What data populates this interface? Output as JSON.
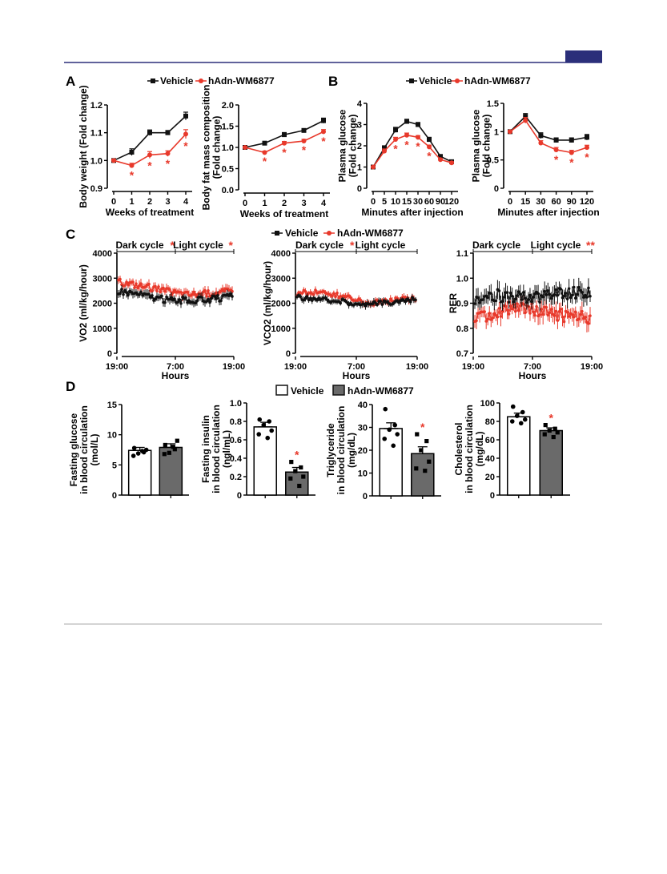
{
  "colors": {
    "vehicle": "#111111",
    "treated": "#e8392b",
    "bar_vehicle": "#ffffff",
    "bar_treated": "#6a6a6a",
    "header_rule": "#2b2f7a",
    "header_box": "#2b2f7a",
    "footer_rule": "#aaaaaa"
  },
  "panels": {
    "A": "A",
    "B": "B",
    "C": "C",
    "D": "D"
  },
  "legend": {
    "vehicle": "Vehicle",
    "treated": "hAdn-WM6877"
  },
  "chart_data": [
    {
      "id": "a1",
      "type": "line",
      "panel": "A",
      "xlabel": "Weeks of treatment",
      "ylabel": "Body weight (Fold change)",
      "categories": [
        "0",
        "1",
        "2",
        "3",
        "4"
      ],
      "ylim": [
        0.9,
        1.2
      ],
      "yticks": [
        "0.9",
        "1.0",
        "1.1",
        "1.2"
      ],
      "series": [
        {
          "name": "Vehicle",
          "values": [
            1.0,
            1.03,
            1.1,
            1.1,
            1.16
          ],
          "err": [
            0.005,
            0.012,
            0.01,
            0.008,
            0.014
          ]
        },
        {
          "name": "hAdn-WM6877",
          "values": [
            1.0,
            0.982,
            1.02,
            1.025,
            1.095
          ],
          "err": [
            0.005,
            0.008,
            0.012,
            0.01,
            0.016
          ]
        }
      ],
      "sig": [
        "",
        "*",
        "*",
        "*",
        "*"
      ]
    },
    {
      "id": "a2",
      "type": "line",
      "panel": "A",
      "xlabel": "Weeks of treatment",
      "ylabel": "Body fat mass composition (Fold change)",
      "categories": [
        "0",
        "1",
        "2",
        "3",
        "4"
      ],
      "ylim": [
        0.0,
        2.0
      ],
      "yticks": [
        "0.0",
        "0.5",
        "1.0",
        "1.5",
        "2.0"
      ],
      "series": [
        {
          "name": "Vehicle",
          "values": [
            1.0,
            1.1,
            1.3,
            1.4,
            1.63
          ],
          "err": [
            0.02,
            0.03,
            0.05,
            0.04,
            0.06
          ]
        },
        {
          "name": "hAdn-WM6877",
          "values": [
            1.0,
            0.88,
            1.1,
            1.15,
            1.37
          ],
          "err": [
            0.02,
            0.03,
            0.04,
            0.04,
            0.05
          ]
        }
      ],
      "sig": [
        "",
        "*",
        "*",
        "*",
        "*"
      ]
    },
    {
      "id": "b1",
      "type": "line",
      "panel": "B",
      "xlabel": "Minutes after injection",
      "ylabel": "Plasma glucose (Fold change)",
      "categories": [
        "0",
        "5",
        "10",
        "15",
        "30",
        "60",
        "90",
        "120"
      ],
      "ylim": [
        0,
        4
      ],
      "yticks": [
        "0",
        "1",
        "2",
        "3",
        "4"
      ],
      "series": [
        {
          "name": "Vehicle",
          "values": [
            1.0,
            1.9,
            2.75,
            3.15,
            3.0,
            2.3,
            1.5,
            1.25
          ],
          "err": [
            0.03,
            0.1,
            0.12,
            0.1,
            0.1,
            0.1,
            0.08,
            0.06
          ]
        },
        {
          "name": "hAdn-WM6877",
          "values": [
            1.0,
            1.75,
            2.3,
            2.5,
            2.4,
            1.95,
            1.35,
            1.2
          ],
          "err": [
            0.03,
            0.1,
            0.1,
            0.1,
            0.08,
            0.08,
            0.06,
            0.05
          ]
        }
      ],
      "sig": [
        "",
        "",
        "*",
        "*",
        "*",
        "*",
        "",
        ""
      ]
    },
    {
      "id": "b2",
      "type": "line",
      "panel": "B",
      "xlabel": "Minutes after injection",
      "ylabel": "Plasma glucose (Fold change)",
      "categories": [
        "0",
        "15",
        "30",
        "60",
        "90",
        "120"
      ],
      "ylim": [
        0,
        1.5
      ],
      "yticks": [
        "0",
        "0.5",
        "1",
        "1.5"
      ],
      "series": [
        {
          "name": "Vehicle",
          "values": [
            1.0,
            1.27,
            0.93,
            0.85,
            0.85,
            0.9
          ],
          "err": [
            0.02,
            0.05,
            0.05,
            0.04,
            0.04,
            0.05
          ]
        },
        {
          "name": "hAdn-WM6877",
          "values": [
            1.0,
            1.2,
            0.8,
            0.68,
            0.63,
            0.72
          ],
          "err": [
            0.02,
            0.05,
            0.04,
            0.04,
            0.04,
            0.04
          ]
        }
      ],
      "sig": [
        "",
        "",
        "",
        "*",
        "*",
        "*"
      ]
    },
    {
      "id": "c1",
      "type": "line",
      "panel": "C",
      "xlabel": "Hours",
      "ylabel": "VO2 (ml/kg/hour)",
      "xticks": [
        "19:00",
        "7:00",
        "19:00"
      ],
      "ylim": [
        0,
        4000
      ],
      "yticks": [
        "0",
        "1000",
        "2000",
        "3000",
        "4000"
      ],
      "cycles": {
        "dark": "Dark cycle",
        "light": "Light cycle",
        "dark_sig": "*",
        "light_sig": "*"
      },
      "series": [
        {
          "name": "Vehicle",
          "values": [
            2500,
            2350,
            2150,
            2100,
            2150,
            2250
          ]
        },
        {
          "name": "hAdn-WM6877",
          "values": [
            2850,
            2700,
            2500,
            2350,
            2400,
            2500
          ]
        }
      ],
      "noise": 130
    },
    {
      "id": "c2",
      "type": "line",
      "panel": "C",
      "xlabel": "Hours",
      "ylabel": "VCO2 (ml/kg/hour)",
      "xticks": [
        "19:00",
        "7:00",
        "19:00"
      ],
      "ylim": [
        0,
        4000
      ],
      "yticks": [
        "0",
        "1000",
        "2000",
        "3000",
        "4000"
      ],
      "cycles": {
        "dark": "Dark cycle",
        "light": "Light cycle",
        "dark_sig": "*",
        "light_sig": ""
      },
      "series": [
        {
          "name": "Vehicle",
          "values": [
            2250,
            2150,
            2050,
            1950,
            2050,
            2150
          ]
        },
        {
          "name": "hAdn-WM6877",
          "values": [
            2400,
            2450,
            2250,
            2000,
            2100,
            2200
          ]
        }
      ],
      "noise": 100
    },
    {
      "id": "c3",
      "type": "line",
      "panel": "C",
      "xlabel": "Hours",
      "ylabel": "RER",
      "xticks": [
        "19:00",
        "7:00",
        "19:00"
      ],
      "ylim": [
        0.7,
        1.1
      ],
      "yticks": [
        "0.7",
        "0.8",
        "0.9",
        "1.0",
        "1.1"
      ],
      "cycles": {
        "dark": "Dark cycle",
        "light": "Light cycle",
        "dark_sig": "",
        "light_sig": "**"
      },
      "series": [
        {
          "name": "Vehicle",
          "values": [
            0.92,
            0.93,
            0.92,
            0.93,
            0.94,
            0.94
          ]
        },
        {
          "name": "hAdn-WM6877",
          "values": [
            0.84,
            0.86,
            0.89,
            0.86,
            0.85,
            0.84
          ]
        }
      ],
      "noise": 0.025
    },
    {
      "id": "d1",
      "type": "bar",
      "panel": "D",
      "ylabel": "Fasting glucose in blood circulation (mol/L)",
      "ylim": [
        0,
        15
      ],
      "yticks": [
        "0",
        "5",
        "10",
        "15"
      ],
      "categories": [
        "Vehicle",
        "hAdn-WM6877"
      ],
      "values": [
        7.4,
        7.9
      ],
      "err": [
        0.5,
        0.6
      ],
      "points": [
        [
          7.8,
          7.1,
          6.9,
          7.5,
          6.5,
          7.3
        ],
        [
          8.3,
          7.6,
          7.0,
          9.0,
          6.8,
          8.0
        ]
      ],
      "sig": [
        "",
        ""
      ]
    },
    {
      "id": "d2",
      "type": "bar",
      "panel": "D",
      "ylabel": "Fasting insulin in blood circulation (ngl/mL)",
      "ylim": [
        0,
        1.0
      ],
      "yticks": [
        "0",
        "0.2",
        "0.4",
        "0.6",
        "0.8",
        "1.0"
      ],
      "categories": [
        "Vehicle",
        "hAdn-WM6877"
      ],
      "values": [
        0.74,
        0.25
      ],
      "err": [
        0.05,
        0.05
      ],
      "points": [
        [
          0.82,
          0.8,
          0.76,
          0.7,
          0.66,
          0.62
        ],
        [
          0.36,
          0.3,
          0.26,
          0.2,
          0.18,
          0.1
        ]
      ],
      "sig": [
        "",
        "*"
      ]
    },
    {
      "id": "d3",
      "type": "bar",
      "panel": "D",
      "ylabel": "Triglyceride in blood circulation (mg/dL)",
      "ylim": [
        0,
        40
      ],
      "yticks": [
        "0",
        "10",
        "20",
        "30",
        "40"
      ],
      "categories": [
        "Vehicle",
        "hAdn-WM6877"
      ],
      "values": [
        29.5,
        18.5
      ],
      "err": [
        2.5,
        3.0
      ],
      "points": [
        [
          38,
          31,
          29,
          27,
          25,
          22
        ],
        [
          27,
          24,
          20,
          15,
          12,
          11
        ]
      ],
      "sig": [
        "",
        "*"
      ]
    },
    {
      "id": "d4",
      "type": "bar",
      "panel": "D",
      "ylabel": "Cholesterol in blood circulation (mg/dL)",
      "ylim": [
        0,
        100
      ],
      "yticks": [
        "0",
        "20",
        "40",
        "60",
        "80",
        "100"
      ],
      "categories": [
        "Vehicle",
        "hAdn-WM6877"
      ],
      "values": [
        85,
        70
      ],
      "err": [
        4,
        3
      ],
      "points": [
        [
          96,
          90,
          86,
          82,
          80,
          78
        ],
        [
          76,
          72,
          70,
          68,
          66,
          63
        ]
      ],
      "sig": [
        "",
        "*"
      ]
    }
  ]
}
